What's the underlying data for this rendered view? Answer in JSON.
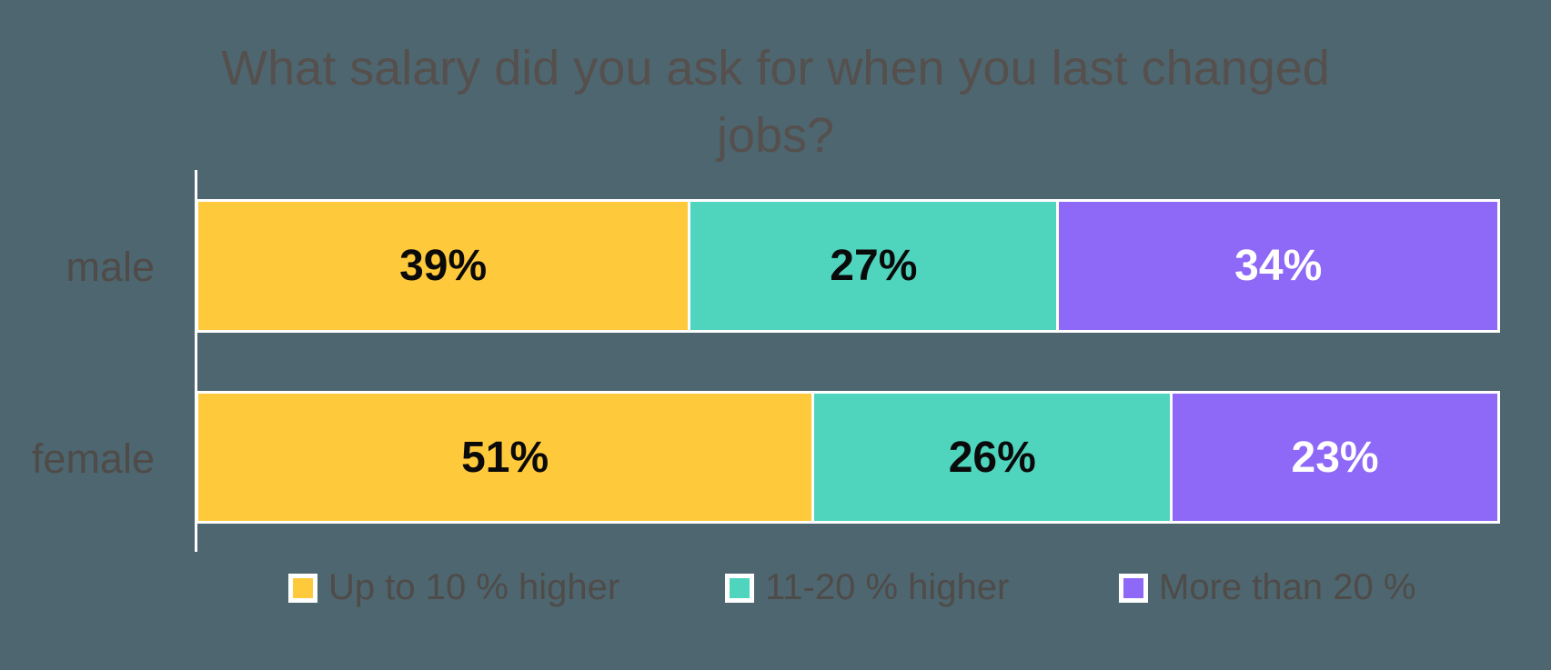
{
  "chart_data": {
    "type": "bar",
    "orientation": "horizontal",
    "stacked": true,
    "title": "What salary did you ask for when you last changed jobs?",
    "categories": [
      "male",
      "female"
    ],
    "series": [
      {
        "name": "Up to 10 % higher",
        "color": "#FFC93C",
        "label_color": "#0A0A0A",
        "values": [
          39,
          51
        ],
        "labels": [
          "39%",
          "51%"
        ]
      },
      {
        "name": "11-20 % higher",
        "color": "#4FD5BD",
        "label_color": "#0A0A0A",
        "values": [
          27,
          26
        ],
        "labels": [
          "27%",
          "26%"
        ]
      },
      {
        "name": "More than 20 %",
        "color": "#8E68F6",
        "label_color": "#FFFFFF",
        "values": [
          34,
          23
        ],
        "labels": [
          "34%",
          "23%"
        ]
      }
    ],
    "xlim": [
      0,
      100
    ],
    "grid": false,
    "legend_position": "bottom",
    "axis_line_color": "#FFFFFF",
    "bar_border_color": "#FFFFFF"
  },
  "style": {
    "background": "#4D6670",
    "title_color": "#55504D",
    "label_color": "#4F4B48"
  }
}
